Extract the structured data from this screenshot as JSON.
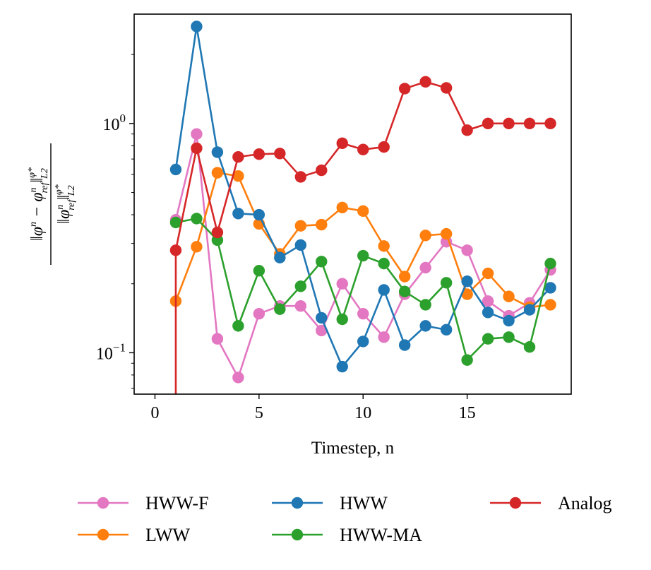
{
  "chart_data": {
    "type": "line",
    "title": "",
    "xlabel": "Timestep, n",
    "ylabel": "||φ^n − φ^n_ref||_{L2}^{φ*} / ||φ^n_ref||_{L2}^{φ*}",
    "yscale": "log",
    "xlim": [
      -1,
      20
    ],
    "ylim": [
      0.066,
      3.0
    ],
    "xticks": [
      0,
      5,
      10,
      15
    ],
    "xtick_labels": [
      "0",
      "5",
      "10",
      "15"
    ],
    "ytick_labels": [
      {
        "base": "10",
        "exp": "0",
        "value": 1
      },
      {
        "base": "10",
        "exp": "−1",
        "value": 0.1
      }
    ],
    "grid": false,
    "legend_position": "below",
    "series": [
      {
        "name": "HWW-F",
        "color": "#e377c2",
        "x": [
          1,
          2,
          3,
          4,
          5,
          6,
          7,
          8,
          9,
          10,
          11,
          12,
          13,
          14,
          15,
          16,
          17,
          18,
          19
        ],
        "values": [
          0.38,
          0.9,
          0.115,
          0.078,
          0.148,
          0.16,
          0.16,
          0.125,
          0.2,
          0.148,
          0.117,
          0.18,
          0.235,
          0.305,
          0.28,
          0.168,
          0.145,
          0.165,
          0.23
        ]
      },
      {
        "name": "LWW",
        "color": "#ff7f0e",
        "x": [
          1,
          2,
          3,
          4,
          5,
          6,
          7,
          8,
          9,
          10,
          11,
          12,
          13,
          14,
          15,
          16,
          17,
          18,
          19
        ],
        "values": [
          0.168,
          0.29,
          0.61,
          0.59,
          0.365,
          0.27,
          0.358,
          0.362,
          0.43,
          0.415,
          0.292,
          0.215,
          0.325,
          0.33,
          0.18,
          0.222,
          0.176,
          0.158,
          0.162
        ]
      },
      {
        "name": "HWW",
        "color": "#1f77b4",
        "x": [
          1,
          2,
          3,
          4,
          5,
          6,
          7,
          8,
          9,
          10,
          11,
          12,
          13,
          14,
          15,
          16,
          17,
          18,
          19
        ],
        "values": [
          0.63,
          2.65,
          0.75,
          0.405,
          0.4,
          0.26,
          0.295,
          0.142,
          0.087,
          0.112,
          0.188,
          0.108,
          0.131,
          0.126,
          0.205,
          0.15,
          0.138,
          0.154,
          0.192
        ]
      },
      {
        "name": "HWW-MA",
        "color": "#2ca02c",
        "x": [
          1,
          2,
          3,
          4,
          5,
          6,
          7,
          8,
          9,
          10,
          11,
          12,
          13,
          14,
          15,
          16,
          17,
          18,
          19
        ],
        "values": [
          0.37,
          0.385,
          0.31,
          0.131,
          0.228,
          0.155,
          0.195,
          0.25,
          0.14,
          0.265,
          0.245,
          0.185,
          0.162,
          0.202,
          0.093,
          0.115,
          0.117,
          0.106,
          0.245
        ]
      },
      {
        "name": "Analog",
        "color": "#d62728",
        "x": [
          1,
          2,
          3,
          4,
          5,
          6,
          7,
          8,
          9,
          10,
          11,
          12,
          13,
          14,
          15,
          16,
          17,
          18,
          19
        ],
        "values": [
          0.28,
          0.78,
          0.335,
          0.715,
          0.735,
          0.74,
          0.585,
          0.625,
          0.82,
          0.77,
          0.79,
          1.42,
          1.52,
          1.43,
          0.935,
          1.0,
          1.0,
          1.0,
          1.0
        ],
        "extends_below_axis_at_start": true
      }
    ],
    "legend": [
      "HWW-F",
      "HWW",
      "Analog",
      "LWW",
      "HWW-MA"
    ]
  }
}
